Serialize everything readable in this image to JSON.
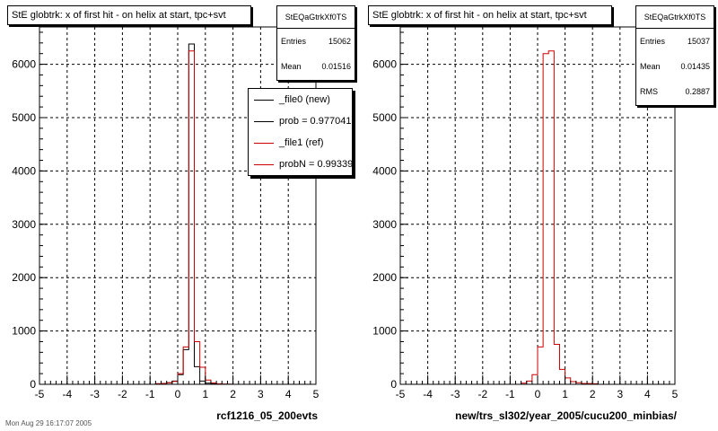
{
  "colors": {
    "new": "#000000",
    "ref": "#cc0000",
    "grid": "#000000"
  },
  "chart_data": [
    {
      "type": "bar",
      "title": "StE globtrk: x of first hit - on helix at start, tpc+svt",
      "xlabel": "rcf1216_05_200evts",
      "ylabel": "",
      "xlim": [
        -5,
        5
      ],
      "ylim": [
        0,
        6700
      ],
      "xticks": [
        "-5",
        "-4",
        "-3",
        "-2",
        "-1",
        "0",
        "1",
        "2",
        "3",
        "4",
        "5"
      ],
      "yticks": [
        {
          "v": 0,
          "label": "0"
        },
        {
          "v": 1000,
          "label": "1000"
        },
        {
          "v": 2000,
          "label": "2000"
        },
        {
          "v": 3000,
          "label": "3000"
        },
        {
          "v": 4000,
          "label": "4000"
        },
        {
          "v": 5000,
          "label": "5000"
        },
        {
          "v": 6000,
          "label": "6000"
        }
      ],
      "grid": true,
      "bin_edges_start": -5,
      "bin_width": 0.2,
      "stats": {
        "name": "StEQaGtrkXf0TS",
        "rows": [
          {
            "label": "Entries",
            "value": "15062"
          },
          {
            "label": "Mean",
            "value": "0.01516"
          }
        ]
      },
      "legend": [
        {
          "label": "_file0 (new)",
          "color": "new"
        },
        {
          "label": "prob = 0.977041",
          "color": "new"
        },
        {
          "label": "_file1 (ref)",
          "color": "ref"
        },
        {
          "label": "probN = 0.993395",
          "color": "ref"
        }
      ],
      "footer": "Mon Aug 29 16:17:07 2005",
      "series": [
        {
          "name": "_file0 (new)",
          "color": "new",
          "values": [
            0,
            0,
            0,
            0,
            0,
            0,
            0,
            0,
            0,
            0,
            0,
            0,
            0,
            0,
            0,
            0,
            0,
            0,
            0,
            0,
            0,
            10,
            15,
            30,
            60,
            180,
            650,
            6380,
            330,
            60,
            20,
            8,
            5,
            3,
            2,
            0,
            0,
            0,
            0,
            0,
            0,
            0,
            0,
            0,
            0,
            0,
            0,
            0,
            0,
            0
          ]
        },
        {
          "name": "_file1 (ref)",
          "color": "ref",
          "values": [
            0,
            0,
            0,
            0,
            0,
            0,
            0,
            0,
            0,
            0,
            0,
            0,
            0,
            0,
            0,
            0,
            0,
            0,
            0,
            0,
            0,
            10,
            15,
            30,
            55,
            200,
            700,
            6250,
            800,
            320,
            80,
            25,
            10,
            5,
            2,
            0,
            0,
            0,
            0,
            0,
            0,
            0,
            0,
            0,
            0,
            0,
            0,
            0,
            0,
            0
          ]
        }
      ]
    },
    {
      "type": "bar",
      "title": "StE globtrk: x of first hit - on helix at start, tpc+svt",
      "xlabel": "new/trs_sl302/year_2005/cucu200_minbias/",
      "ylabel": "",
      "xlim": [
        -5,
        5
      ],
      "ylim": [
        0,
        6700
      ],
      "xticks": [
        "-5",
        "-4",
        "-3",
        "-2",
        "-1",
        "0",
        "1",
        "2",
        "3",
        "4",
        "5"
      ],
      "yticks": [
        {
          "v": 0,
          "label": "0"
        },
        {
          "v": 1000,
          "label": "1000"
        },
        {
          "v": 2000,
          "label": "2000"
        },
        {
          "v": 3000,
          "label": "3000"
        },
        {
          "v": 4000,
          "label": "4000"
        },
        {
          "v": 5000,
          "label": "5000"
        },
        {
          "v": 6000,
          "label": "6000"
        }
      ],
      "grid": true,
      "bin_edges_start": -5,
      "bin_width": 0.2,
      "stats": {
        "name": "StEQaGtrkXf0TS",
        "rows": [
          {
            "label": "Entries",
            "value": "15037"
          },
          {
            "label": "Mean",
            "value": "0.01435"
          },
          {
            "label": "RMS",
            "value": "0.2887"
          }
        ]
      },
      "series": [
        {
          "name": "",
          "color": "ref",
          "values": [
            0,
            0,
            0,
            0,
            0,
            0,
            0,
            0,
            0,
            0,
            0,
            0,
            0,
            0,
            0,
            0,
            0,
            0,
            0,
            0,
            0,
            0,
            20,
            60,
            180,
            700,
            6200,
            6250,
            750,
            280,
            120,
            50,
            30,
            15,
            15,
            10,
            0,
            0,
            0,
            0,
            0,
            0,
            0,
            0,
            0,
            0,
            0,
            0,
            0,
            0
          ]
        }
      ]
    }
  ]
}
